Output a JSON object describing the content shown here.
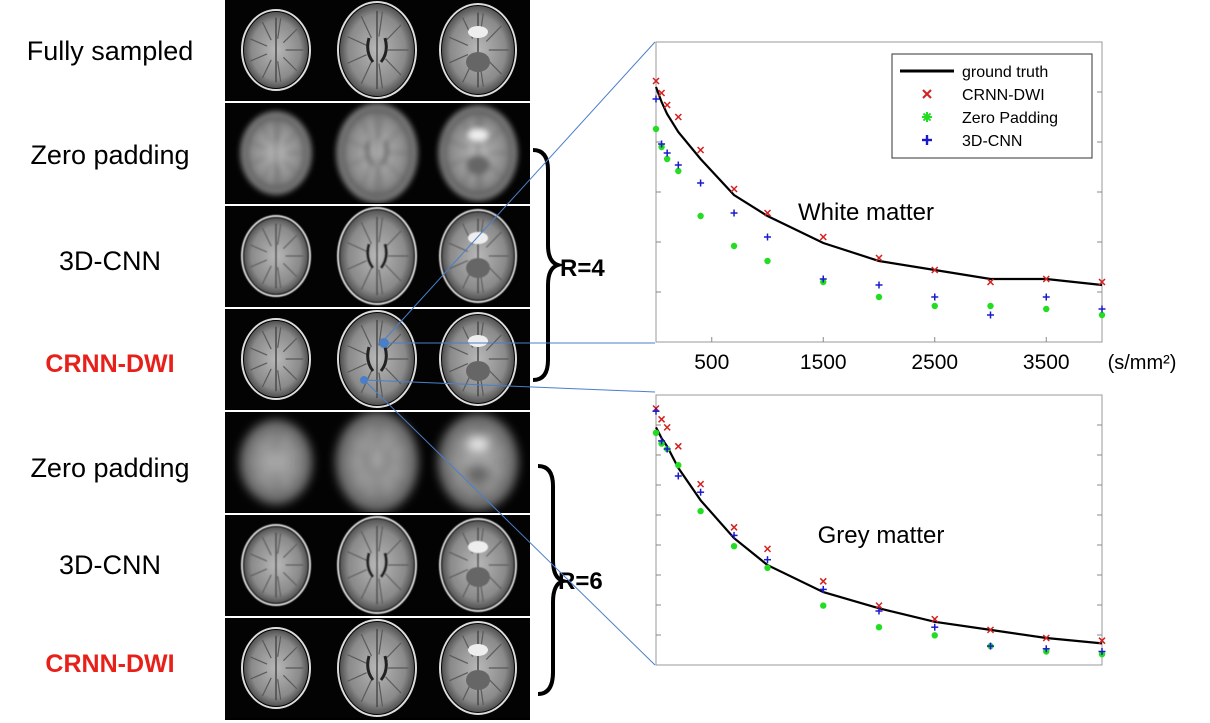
{
  "rows": [
    {
      "label": "Fully sampled",
      "highlight": false
    },
    {
      "label": "Zero padding",
      "highlight": false
    },
    {
      "label": "3D-CNN",
      "highlight": false
    },
    {
      "label": "CRNN-DWI",
      "highlight": true
    },
    {
      "label": "Zero padding",
      "highlight": false
    },
    {
      "label": "3D-CNN",
      "highlight": false
    },
    {
      "label": "CRNN-DWI",
      "highlight": true
    }
  ],
  "groups": {
    "r4": "R=4",
    "r6": "R=6"
  },
  "colors": {
    "ground_truth": "#000000",
    "crnn": "#d42020",
    "zero": "#22dd22",
    "cnn3d": "#1a1acc",
    "roi": "#4a7fc8"
  },
  "chart_data": [
    {
      "type": "line",
      "title": "White matter",
      "xlabel": "(s/mm²)",
      "xticks": [
        500,
        1500,
        2500,
        3500
      ],
      "xlim": [
        0,
        4000
      ],
      "ylim": [
        0,
        1
      ],
      "legend": {
        "position": "top-right",
        "entries": [
          "ground truth",
          "CRNN-DWI",
          "Zero Padding",
          "3D-CNN"
        ]
      },
      "x": [
        0,
        50,
        100,
        200,
        400,
        700,
        1000,
        1500,
        2000,
        2500,
        3000,
        3500,
        4000
      ],
      "series": [
        {
          "name": "ground truth",
          "marker": "line",
          "values": [
            0.85,
            0.8,
            0.76,
            0.7,
            0.61,
            0.49,
            0.42,
            0.33,
            0.27,
            0.24,
            0.21,
            0.21,
            0.19
          ]
        },
        {
          "name": "CRNN-DWI",
          "marker": "x",
          "values": [
            0.87,
            0.83,
            0.79,
            0.75,
            0.64,
            0.51,
            0.43,
            0.35,
            0.28,
            0.24,
            0.2,
            0.21,
            0.2
          ]
        },
        {
          "name": "Zero Padding",
          "marker": "*",
          "values": [
            0.71,
            0.65,
            0.61,
            0.57,
            0.42,
            0.32,
            0.27,
            0.2,
            0.15,
            0.12,
            0.12,
            0.11,
            0.09
          ]
        },
        {
          "name": "3D-CNN",
          "marker": "+",
          "values": [
            0.81,
            0.66,
            0.63,
            0.59,
            0.53,
            0.43,
            0.35,
            0.21,
            0.19,
            0.15,
            0.09,
            0.15,
            0.11
          ]
        }
      ]
    },
    {
      "type": "line",
      "title": "Grey matter",
      "xlim": [
        0,
        4000
      ],
      "ylim": [
        0,
        1
      ],
      "x": [
        0,
        50,
        100,
        200,
        400,
        700,
        1000,
        1500,
        2000,
        2500,
        3000,
        3500,
        4000
      ],
      "series": [
        {
          "name": "ground truth",
          "marker": "line",
          "values": [
            0.88,
            0.84,
            0.81,
            0.73,
            0.61,
            0.47,
            0.37,
            0.27,
            0.21,
            0.16,
            0.13,
            0.1,
            0.08
          ]
        },
        {
          "name": "CRNN-DWI",
          "marker": "x",
          "values": [
            0.95,
            0.91,
            0.88,
            0.81,
            0.67,
            0.51,
            0.43,
            0.31,
            0.22,
            0.17,
            0.13,
            0.1,
            0.09
          ]
        },
        {
          "name": "Zero Padding",
          "marker": "*",
          "values": [
            0.86,
            0.82,
            0.8,
            0.74,
            0.57,
            0.44,
            0.36,
            0.22,
            0.14,
            0.11,
            0.07,
            0.05,
            0.04
          ]
        },
        {
          "name": "3D-CNN",
          "marker": "+",
          "values": [
            0.94,
            0.83,
            0.8,
            0.7,
            0.64,
            0.48,
            0.39,
            0.28,
            0.2,
            0.14,
            0.07,
            0.06,
            0.05
          ]
        }
      ]
    }
  ]
}
